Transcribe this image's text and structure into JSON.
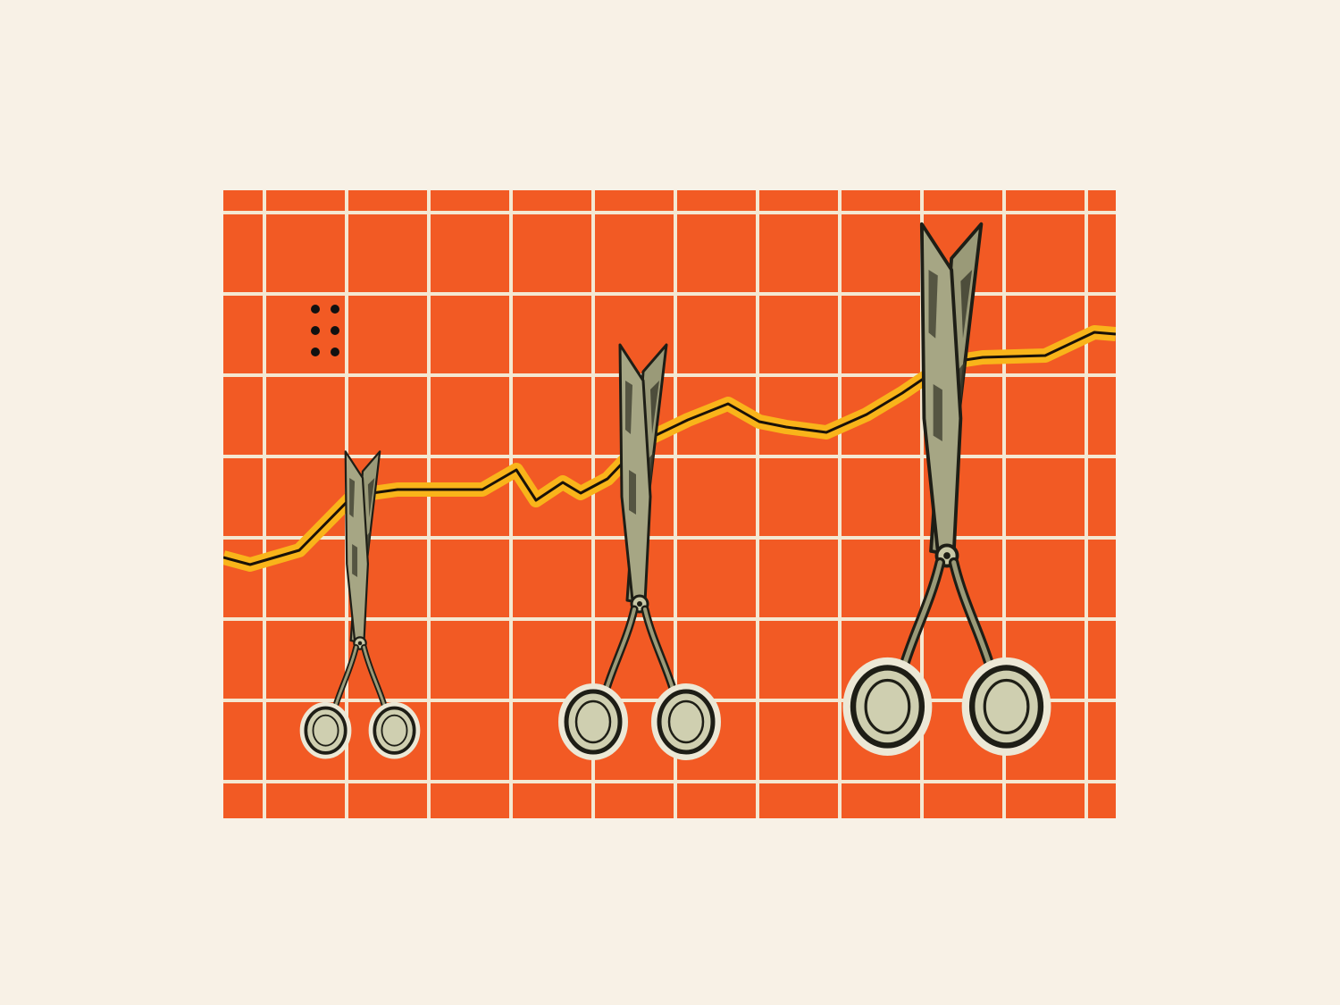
{
  "illustration": {
    "subject": "scissors-cutting-rising-line-chart",
    "colors": {
      "background": "#f8f1e6",
      "panel": "#f25a24",
      "grid": "#f4e8d2",
      "trend_highlight": "#f9b41a",
      "trend_line": "#1a1208",
      "scissor_blade": "#9a9a78",
      "scissor_blade_dark": "#3a3a2c",
      "scissor_handle": "#cfcfb0",
      "scissor_outline": "#1e1e16",
      "dots": "#111111"
    },
    "trend_shape": "rising-jagged",
    "scissors_count": 3,
    "dot_grid": {
      "rows": 3,
      "cols": 2
    },
    "icons": [
      "scissors-icon",
      "dot-grid-icon"
    ]
  }
}
